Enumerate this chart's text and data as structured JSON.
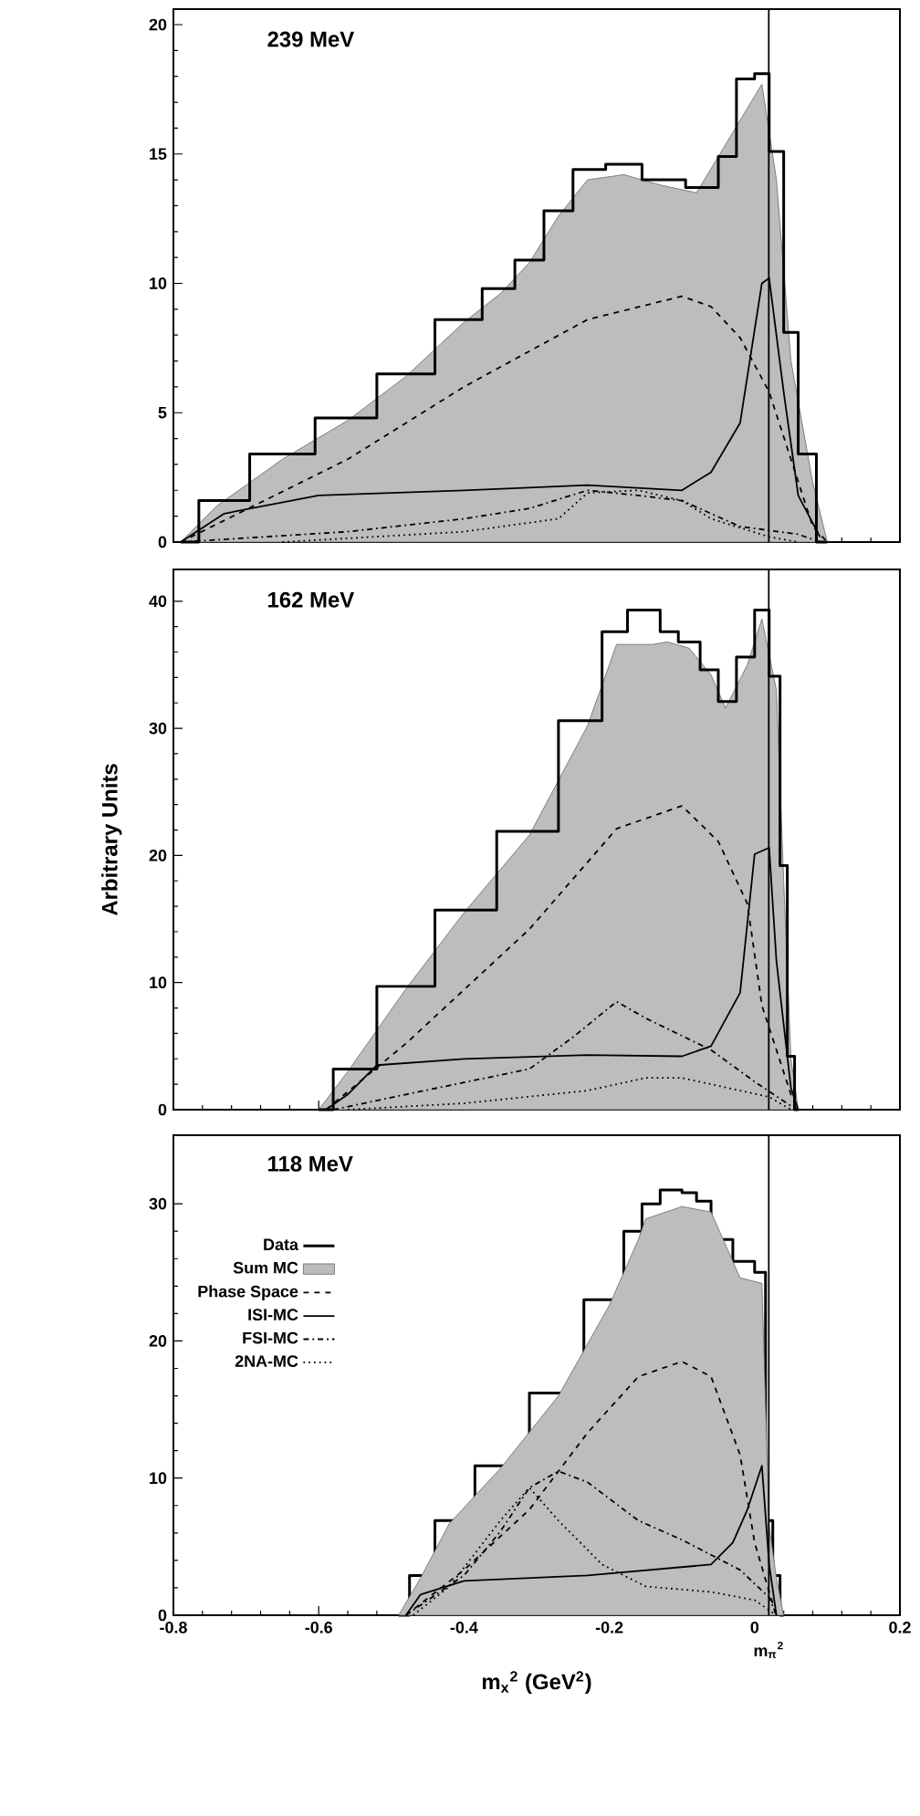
{
  "chart_data": [
    {
      "type": "line",
      "title": "239 MeV",
      "xlim": [
        -0.8,
        0.2
      ],
      "ylim": [
        0,
        20.6
      ],
      "xticks": [
        -0.8,
        -0.6,
        -0.4,
        -0.2,
        0,
        0.2
      ],
      "yticks": [
        0,
        5,
        10,
        15,
        20
      ],
      "tick_labels": "y",
      "ref_lines": [
        {
          "axis": "x",
          "value": 0.0195
        }
      ],
      "series": [
        {
          "type": "area",
          "color": "#bdbdbd",
          "x": [
            -0.79,
            -0.74,
            -0.65,
            -0.56,
            -0.48,
            -0.4,
            -0.35,
            -0.31,
            -0.27,
            -0.23,
            -0.18,
            -0.13,
            -0.08,
            -0.02,
            0.01,
            0.03,
            0.05,
            0.08,
            0.1
          ],
          "values": [
            0,
            1.4,
            3.2,
            4.7,
            6.4,
            8.5,
            9.6,
            10.8,
            12.6,
            14.0,
            14.2,
            13.8,
            13.5,
            16.3,
            17.7,
            14.0,
            7.0,
            2.3,
            0
          ]
        },
        {
          "type": "step",
          "color": "#000000",
          "x": [
            -0.79,
            -0.74,
            -0.65,
            -0.56,
            -0.48,
            -0.4,
            -0.35,
            -0.31,
            -0.27,
            -0.23,
            -0.18,
            -0.13,
            -0.06,
            -0.04,
            -0.01,
            0.01,
            0.03,
            0.05,
            0.07,
            0.1
          ],
          "values": [
            0,
            1.6,
            3.4,
            4.8,
            6.5,
            8.6,
            9.8,
            10.9,
            12.8,
            14.4,
            14.6,
            14.0,
            13.7,
            14.9,
            17.9,
            18.1,
            15.1,
            8.1,
            3.4,
            0
          ]
        },
        {
          "line_style": "dashed",
          "color": "#000000",
          "x": [
            -0.79,
            -0.56,
            -0.4,
            -0.23,
            -0.1,
            -0.06,
            -0.02,
            0.02,
            0.05,
            0.08,
            0.1
          ],
          "values": [
            0,
            3.2,
            6.0,
            8.6,
            9.5,
            9.1,
            7.9,
            5.8,
            3.2,
            0.6,
            0
          ]
        },
        {
          "line_style": "solid",
          "color": "#000000",
          "x": [
            -0.79,
            -0.73,
            -0.6,
            -0.4,
            -0.23,
            -0.1,
            -0.06,
            -0.02,
            0.01,
            0.02,
            0.04,
            0.06,
            0.09
          ],
          "values": [
            0,
            1.1,
            1.8,
            2.0,
            2.2,
            2.0,
            2.7,
            4.6,
            10.0,
            10.2,
            5.8,
            1.8,
            0.2
          ]
        },
        {
          "line_style": "dashdot",
          "color": "#000000",
          "x": [
            -0.79,
            -0.56,
            -0.4,
            -0.31,
            -0.23,
            -0.16,
            -0.1,
            -0.02,
            0.06,
            0.09
          ],
          "values": [
            0,
            0.4,
            0.9,
            1.3,
            2.0,
            1.8,
            1.6,
            0.6,
            0.3,
            0
          ]
        },
        {
          "line_style": "dotted",
          "color": "#000000",
          "x": [
            -0.65,
            -0.4,
            -0.27,
            -0.23,
            -0.16,
            -0.1,
            -0.06,
            0.02,
            0.06
          ],
          "values": [
            0,
            0.4,
            0.9,
            1.9,
            2.0,
            1.6,
            0.9,
            0.2,
            0
          ]
        }
      ]
    },
    {
      "type": "line",
      "title": "162 MeV",
      "ylabel": "Arbitrary Units",
      "xlim": [
        -0.8,
        0.2
      ],
      "ylim": [
        0,
        42.5
      ],
      "xticks": [
        -0.8,
        -0.6,
        -0.4,
        -0.2,
        0,
        0.2
      ],
      "yticks": [
        0,
        10,
        20,
        30,
        40
      ],
      "tick_labels": "y",
      "ref_lines": [
        {
          "axis": "x",
          "value": 0.0195
        }
      ],
      "series": [
        {
          "type": "area",
          "color": "#bdbdbd",
          "x": [
            -0.6,
            -0.56,
            -0.48,
            -0.4,
            -0.31,
            -0.23,
            -0.19,
            -0.14,
            -0.12,
            -0.09,
            -0.06,
            -0.04,
            -0.01,
            0.01,
            0.03,
            0.04,
            0.05,
            0.06
          ],
          "values": [
            0,
            3.0,
            9.5,
            15.5,
            21.6,
            30.2,
            36.6,
            36.6,
            36.8,
            36.3,
            34.2,
            31.6,
            35.0,
            38.6,
            33.0,
            18.0,
            4.0,
            0
          ]
        },
        {
          "type": "step",
          "color": "#000000",
          "x": [
            -0.6,
            -0.56,
            -0.48,
            -0.4,
            -0.31,
            -0.23,
            -0.19,
            -0.16,
            -0.14,
            -0.12,
            -0.09,
            -0.06,
            -0.04,
            -0.01,
            0.01,
            0.03,
            0.04,
            0.05,
            0.06
          ],
          "values": [
            0,
            3.2,
            9.7,
            15.7,
            21.9,
            30.6,
            37.6,
            39.3,
            39.3,
            37.6,
            36.8,
            34.6,
            32.1,
            35.6,
            39.3,
            34.1,
            19.2,
            4.2,
            0
          ]
        },
        {
          "line_style": "dashed",
          "color": "#000000",
          "x": [
            -0.59,
            -0.48,
            -0.31,
            -0.19,
            -0.1,
            -0.05,
            -0.01,
            0.01,
            0.05,
            0.06
          ],
          "values": [
            0,
            5.2,
            14.2,
            22.1,
            23.9,
            21.1,
            16.2,
            8.2,
            1.2,
            0
          ]
        },
        {
          "line_style": "solid",
          "color": "#000000",
          "x": [
            -0.59,
            -0.56,
            -0.52,
            -0.4,
            -0.23,
            -0.1,
            -0.06,
            -0.02,
            0.0,
            0.02,
            0.03,
            0.05,
            0.06
          ],
          "values": [
            0,
            1.2,
            3.5,
            4.0,
            4.3,
            4.2,
            5.0,
            9.2,
            20.1,
            20.6,
            11.7,
            1.7,
            0
          ]
        },
        {
          "line_style": "dashdot",
          "color": "#000000",
          "x": [
            -0.58,
            -0.48,
            -0.31,
            -0.25,
            -0.19,
            -0.15,
            -0.06,
            0.0,
            0.05,
            0.06
          ],
          "values": [
            0,
            1.2,
            3.2,
            5.7,
            8.5,
            7.2,
            4.7,
            2.2,
            0.3,
            0
          ]
        },
        {
          "line_style": "dotted",
          "color": "#000000",
          "x": [
            -0.56,
            -0.4,
            -0.23,
            -0.15,
            -0.1,
            -0.02,
            0.02,
            0.05
          ],
          "values": [
            0,
            0.5,
            1.5,
            2.5,
            2.5,
            1.5,
            1.0,
            0
          ]
        }
      ]
    },
    {
      "type": "line",
      "title": "118 MeV",
      "xlabel": "m$_{x}$$^{2}$ (GeV$^{2}$)",
      "legend": "top left",
      "xlim": [
        -0.8,
        0.2
      ],
      "ylim": [
        0,
        35
      ],
      "xticks": [
        -0.8,
        -0.6,
        -0.4,
        -0.2,
        0,
        0.2
      ],
      "yticks": [
        0,
        10,
        20,
        30
      ],
      "ref_lines": [
        {
          "axis": "x",
          "value": 0.0195,
          "label": "m$_{π}$$^{2}$"
        }
      ],
      "series": [
        {
          "name": "Data",
          "type": "step",
          "color": "#000000",
          "x": [
            -0.49,
            -0.46,
            -0.42,
            -0.35,
            -0.27,
            -0.2,
            -0.16,
            -0.15,
            -0.11,
            -0.09,
            -0.07,
            -0.05,
            -0.01,
            0.01,
            0.02,
            0.03,
            0.04
          ],
          "values": [
            0,
            2.9,
            6.9,
            10.9,
            16.2,
            23.0,
            28.0,
            30.0,
            31.0,
            30.8,
            30.2,
            27.4,
            25.8,
            25.0,
            6.9,
            2.9,
            0
          ]
        },
        {
          "name": "Sum MC",
          "type": "area",
          "color": "#bdbdbd",
          "x": [
            -0.49,
            -0.46,
            -0.42,
            -0.35,
            -0.27,
            -0.2,
            -0.16,
            -0.15,
            -0.1,
            -0.06,
            -0.02,
            0.01,
            0.02,
            0.03,
            0.04
          ],
          "values": [
            0,
            2.7,
            6.7,
            10.7,
            16.0,
            22.6,
            27.4,
            28.9,
            29.8,
            29.4,
            24.6,
            24.2,
            6.5,
            2.7,
            0
          ]
        },
        {
          "name": "Phase Space",
          "line_style": "dashed",
          "color": "#000000",
          "x": [
            -0.48,
            -0.4,
            -0.31,
            -0.23,
            -0.16,
            -0.1,
            -0.06,
            -0.02,
            0.0,
            0.02,
            0.03
          ],
          "values": [
            0,
            3.3,
            7.7,
            13.3,
            17.4,
            18.5,
            17.4,
            11.7,
            5.3,
            1.7,
            0
          ]
        },
        {
          "name": "ISI-MC",
          "line_style": "solid",
          "color": "#000000",
          "x": [
            -0.48,
            -0.46,
            -0.4,
            -0.23,
            -0.06,
            -0.03,
            -0.01,
            0.01,
            0.02,
            0.03
          ],
          "values": [
            0,
            1.5,
            2.5,
            2.9,
            3.7,
            5.3,
            7.7,
            10.9,
            3.7,
            0
          ]
        },
        {
          "name": "FSI-MC",
          "line_style": "dashdot",
          "color": "#000000",
          "x": [
            -0.48,
            -0.4,
            -0.35,
            -0.31,
            -0.27,
            -0.23,
            -0.16,
            -0.1,
            -0.02,
            0.02,
            0.03
          ],
          "values": [
            0,
            2.9,
            6.1,
            9.3,
            10.5,
            9.7,
            6.9,
            5.5,
            3.3,
            1.3,
            0
          ]
        },
        {
          "name": "2NA-MC",
          "line_style": "dotted",
          "color": "#000000",
          "x": [
            -0.47,
            -0.42,
            -0.35,
            -0.31,
            -0.27,
            -0.21,
            -0.15,
            -0.06,
            0.0,
            0.03
          ],
          "values": [
            0,
            2.1,
            6.9,
            9.3,
            6.9,
            3.7,
            2.1,
            1.7,
            1.1,
            0
          ]
        }
      ]
    }
  ]
}
